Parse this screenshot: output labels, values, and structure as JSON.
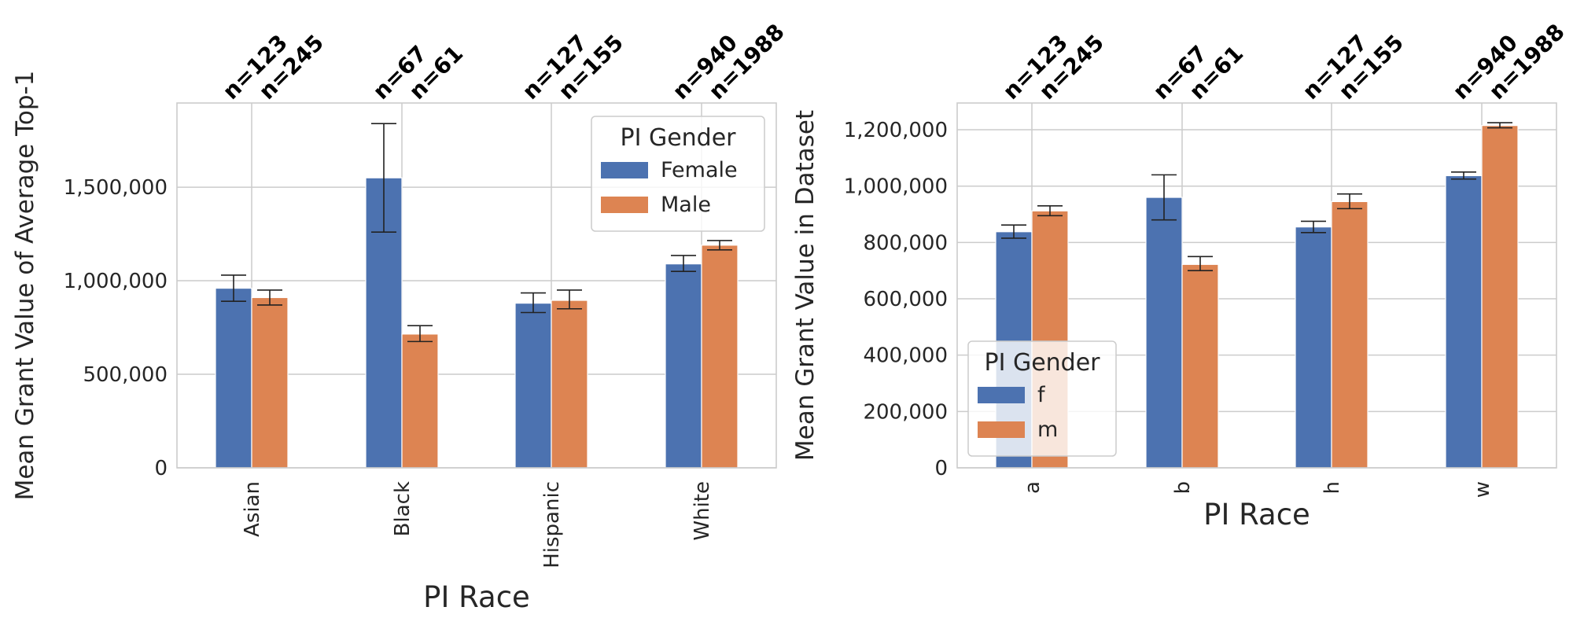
{
  "colors": {
    "female": "#4C72B0",
    "male": "#DD8452",
    "grid": "#cccccc",
    "frame": "#cccccc",
    "error": "#222222"
  },
  "chart_data": [
    {
      "type": "bar",
      "xlabel": "PI Race",
      "ylabel": "Mean Grant Value of Average Top-1",
      "categories": [
        "Asian",
        "Black",
        "Hispanic",
        "White"
      ],
      "ylim": [
        0,
        1950000
      ],
      "yticks": [
        0,
        500000,
        1000000,
        1500000
      ],
      "ytick_labels": [
        "0",
        "500,000",
        "1,000,000",
        "1,500,000"
      ],
      "grid": true,
      "legend": {
        "title": "PI Gender",
        "position": "top-right",
        "entries": [
          "Female",
          "Male"
        ]
      },
      "series": [
        {
          "name": "Female",
          "color": "#4C72B0",
          "values": [
            960000,
            1550000,
            880000,
            1090000
          ],
          "err_low": [
            890000,
            1260000,
            830000,
            1050000
          ],
          "err_high": [
            1030000,
            1840000,
            935000,
            1135000
          ],
          "n_labels": [
            "n=123",
            "n=67",
            "n=127",
            "n=940"
          ]
        },
        {
          "name": "Male",
          "color": "#DD8452",
          "values": [
            910000,
            715000,
            895000,
            1190000
          ],
          "err_low": [
            870000,
            675000,
            850000,
            1165000
          ],
          "err_high": [
            950000,
            760000,
            950000,
            1215000
          ],
          "n_labels": [
            "n=245",
            "n=61",
            "n=155",
            "n=1988"
          ]
        }
      ]
    },
    {
      "type": "bar",
      "xlabel": "PI Race",
      "ylabel": "Mean Grant Value in Dataset",
      "categories": [
        "a",
        "b",
        "h",
        "w"
      ],
      "ylim": [
        0,
        1295000
      ],
      "yticks": [
        0,
        200000,
        400000,
        600000,
        800000,
        1000000,
        1200000
      ],
      "ytick_labels": [
        "0",
        "200,000",
        "400,000",
        "600,000",
        "800,000",
        "1,000,000",
        "1,200,000"
      ],
      "grid": true,
      "legend": {
        "title": "PI Gender",
        "position": "lower-left",
        "entries": [
          "f",
          "m"
        ]
      },
      "series": [
        {
          "name": "f",
          "color": "#4C72B0",
          "values": [
            838000,
            960000,
            855000,
            1037000
          ],
          "err_low": [
            815000,
            880000,
            835000,
            1025000
          ],
          "err_high": [
            862000,
            1040000,
            875000,
            1050000
          ],
          "n_labels": [
            "n=123",
            "n=67",
            "n=127",
            "n=940"
          ]
        },
        {
          "name": "m",
          "color": "#DD8452",
          "values": [
            912000,
            722000,
            945000,
            1215000
          ],
          "err_low": [
            895000,
            700000,
            920000,
            1207000
          ],
          "err_high": [
            930000,
            750000,
            972000,
            1225000
          ],
          "n_labels": [
            "n=245",
            "n=61",
            "n=155",
            "n=1988"
          ]
        }
      ]
    }
  ]
}
